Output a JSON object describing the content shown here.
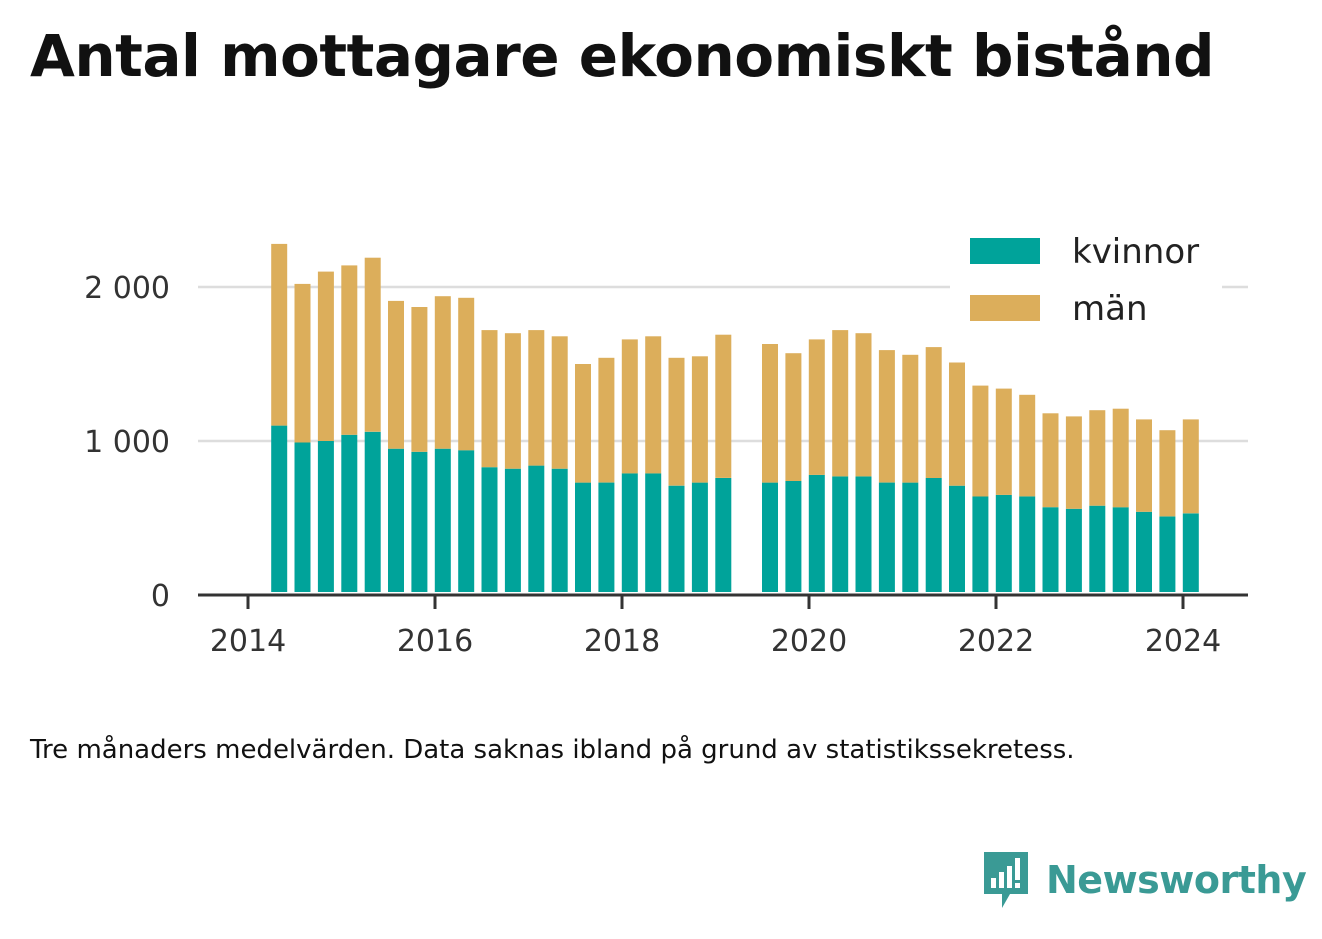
{
  "title": "Antal mottagare ekonomiskt bistånd",
  "note": "Tre månaders medelvärden. Data saknas ibland på grund av statistikssekretess.",
  "brand": {
    "name": "Newsworthy",
    "icon": "newsworthy-logo-icon"
  },
  "colors": {
    "kvinnor": "#00a39a",
    "man": "#dcae5b",
    "grid": "#dddddd",
    "axis": "#333333"
  },
  "chart_data": {
    "type": "bar",
    "stacked": true,
    "x_ticks": [
      "2014",
      "2016",
      "2018",
      "2020",
      "2022",
      "2024"
    ],
    "y_ticks": [
      {
        "value": 0,
        "label": "0"
      },
      {
        "value": 1000,
        "label": "1 000"
      },
      {
        "value": 2000,
        "label": "2 000"
      }
    ],
    "ylim": [
      0,
      2500
    ],
    "xlim": [
      "2013-10",
      "2024-06"
    ],
    "grid": true,
    "legend_position": "top-right",
    "x": [
      "2014-05",
      "2014-08",
      "2014-11",
      "2015-02",
      "2015-05",
      "2015-08",
      "2015-11",
      "2016-02",
      "2016-05",
      "2016-08",
      "2016-11",
      "2017-02",
      "2017-05",
      "2017-08",
      "2017-11",
      "2018-02",
      "2018-05",
      "2018-08",
      "2018-11",
      "2019-02",
      "2019-05",
      "2019-08",
      "2019-11",
      "2020-02",
      "2020-05",
      "2020-08",
      "2020-11",
      "2021-02",
      "2021-05",
      "2021-08",
      "2021-11",
      "2022-02",
      "2022-05",
      "2022-08",
      "2022-11",
      "2023-02",
      "2023-05",
      "2023-08",
      "2023-11",
      "2024-02"
    ],
    "series": [
      {
        "name": "kvinnor",
        "color": "#00a39a",
        "values": [
          1100,
          990,
          1000,
          1040,
          1060,
          950,
          930,
          950,
          940,
          830,
          820,
          840,
          820,
          730,
          730,
          790,
          790,
          710,
          730,
          760,
          null,
          730,
          740,
          780,
          770,
          770,
          730,
          730,
          760,
          710,
          640,
          650,
          640,
          570,
          560,
          580,
          570,
          540,
          510,
          530
        ]
      },
      {
        "name": "män",
        "color": "#dcae5b",
        "values": [
          1180,
          1030,
          1100,
          1100,
          1130,
          960,
          940,
          990,
          990,
          890,
          880,
          880,
          860,
          770,
          810,
          870,
          890,
          830,
          820,
          930,
          null,
          900,
          830,
          880,
          950,
          930,
          860,
          830,
          850,
          800,
          720,
          690,
          660,
          610,
          600,
          620,
          640,
          600,
          560,
          610
        ]
      }
    ]
  }
}
